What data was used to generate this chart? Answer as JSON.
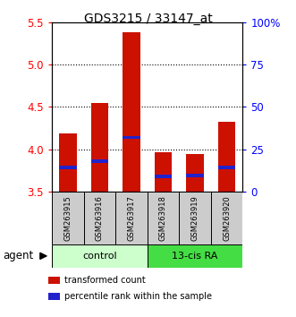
{
  "title": "GDS3215 / 33147_at",
  "samples": [
    "GSM263915",
    "GSM263916",
    "GSM263917",
    "GSM263918",
    "GSM263919",
    "GSM263920"
  ],
  "transformed_counts": [
    4.19,
    4.55,
    5.38,
    3.97,
    3.95,
    4.33
  ],
  "percentile_ranks": [
    3.79,
    3.86,
    4.14,
    3.68,
    3.69,
    3.79
  ],
  "bar_bottom": 3.5,
  "ylim": [
    3.5,
    5.5
  ],
  "yticks_left": [
    3.5,
    4.0,
    4.5,
    5.0,
    5.5
  ],
  "yticks_right_pct": [
    0,
    25,
    50,
    75,
    100
  ],
  "ytick_labels_right": [
    "0",
    "25",
    "50",
    "75",
    "100%"
  ],
  "bar_color": "#cc1100",
  "percentile_color": "#2222cc",
  "bar_width": 0.55,
  "legend_items": [
    "transformed count",
    "percentile rank within the sample"
  ],
  "legend_colors": [
    "#cc1100",
    "#2222cc"
  ],
  "agent_label": "agent",
  "control_color": "#ccffcc",
  "ra_color": "#44dd44",
  "sample_box_color": "#cccccc",
  "figsize": [
    3.31,
    3.54
  ],
  "dpi": 100
}
